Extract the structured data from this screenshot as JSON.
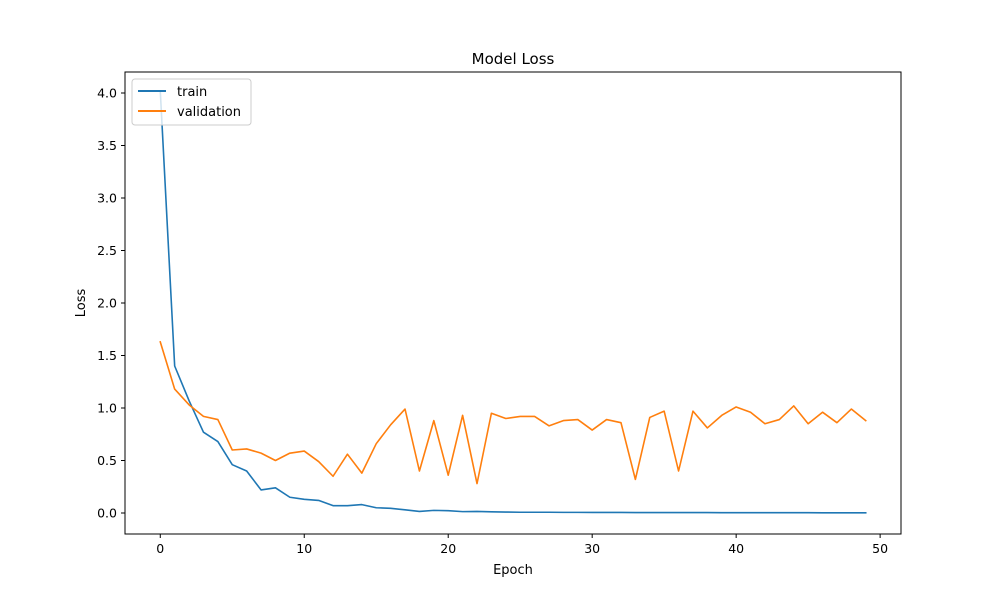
{
  "chart_data": {
    "type": "line",
    "title": "Model Loss",
    "xlabel": "Epoch",
    "ylabel": "Loss",
    "xlim": [
      -2.45,
      51.45
    ],
    "ylim": [
      -0.2,
      4.2
    ],
    "xticks": [
      0,
      10,
      20,
      30,
      40,
      50
    ],
    "yticks": [
      0.0,
      0.5,
      1.0,
      1.5,
      2.0,
      2.5,
      3.0,
      3.5,
      4.0
    ],
    "ytick_labels": [
      "0.0",
      "0.5",
      "1.0",
      "1.5",
      "2.0",
      "2.5",
      "3.0",
      "3.5",
      "4.0"
    ],
    "grid": false,
    "legend_position": "upper-left",
    "x": [
      0,
      1,
      2,
      3,
      4,
      5,
      6,
      7,
      8,
      9,
      10,
      11,
      12,
      13,
      14,
      15,
      16,
      17,
      18,
      19,
      20,
      21,
      22,
      23,
      24,
      25,
      26,
      27,
      28,
      29,
      30,
      31,
      32,
      33,
      34,
      35,
      36,
      37,
      38,
      39,
      40,
      41,
      42,
      43,
      44,
      45,
      46,
      47,
      48,
      49
    ],
    "series": [
      {
        "name": "train",
        "color": "#1f77b4",
        "values": [
          4.02,
          1.4,
          1.07,
          0.77,
          0.68,
          0.46,
          0.4,
          0.22,
          0.24,
          0.15,
          0.13,
          0.12,
          0.07,
          0.07,
          0.08,
          0.05,
          0.045,
          0.03,
          0.015,
          0.025,
          0.022,
          0.013,
          0.015,
          0.011,
          0.009,
          0.007,
          0.007,
          0.007,
          0.006,
          0.006,
          0.005,
          0.005,
          0.005,
          0.004,
          0.004,
          0.004,
          0.004,
          0.004,
          0.004,
          0.003,
          0.003,
          0.003,
          0.003,
          0.003,
          0.003,
          0.003,
          0.002,
          0.002,
          0.002,
          0.002
        ]
      },
      {
        "name": "validation",
        "color": "#ff7f0e",
        "values": [
          1.63,
          1.18,
          1.03,
          0.92,
          0.89,
          0.6,
          0.61,
          0.57,
          0.5,
          0.57,
          0.59,
          0.49,
          0.35,
          0.56,
          0.38,
          0.66,
          0.84,
          0.99,
          0.4,
          0.88,
          0.36,
          0.93,
          0.28,
          0.95,
          0.9,
          0.92,
          0.92,
          0.83,
          0.88,
          0.89,
          0.79,
          0.89,
          0.86,
          0.32,
          0.91,
          0.97,
          0.4,
          0.97,
          0.81,
          0.93,
          1.01,
          0.96,
          0.85,
          0.89,
          1.02,
          0.85,
          0.96,
          0.86,
          0.99,
          0.88
        ]
      }
    ]
  }
}
